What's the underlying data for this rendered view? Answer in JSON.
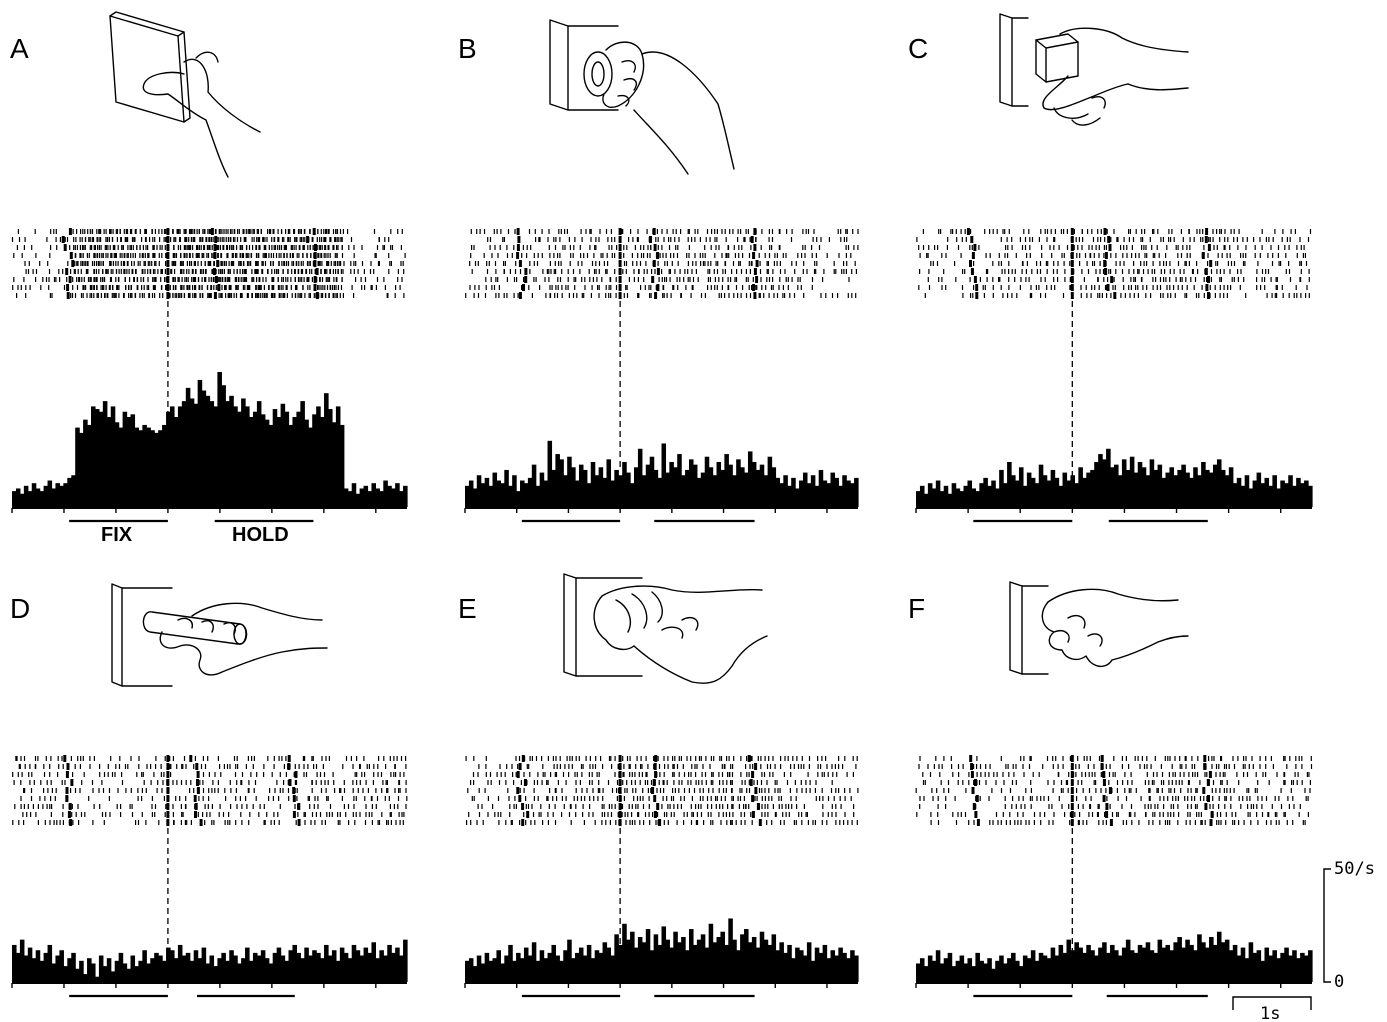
{
  "figure": {
    "panels": [
      {
        "label": "A",
        "object": "flat plate",
        "bar_height_scale": 1.0,
        "epoch_labels": {
          "fix": "FIX",
          "hold": "HOLD"
        }
      },
      {
        "label": "B",
        "object": "ring",
        "bar_height_scale": 0.45
      },
      {
        "label": "C",
        "object": "cube in groove",
        "bar_height_scale": 0.45
      },
      {
        "label": "D",
        "object": "cylinder",
        "bar_height_scale": 0.35
      },
      {
        "label": "E",
        "object": "large cylinder",
        "bar_height_scale": 0.45
      },
      {
        "label": "F",
        "object": "small cone",
        "bar_height_scale": 0.35
      }
    ],
    "calibration": {
      "rate_label": "50/s",
      "zero_label": "0",
      "time_label": "1s"
    }
  },
  "chart_data": [
    {
      "type": "bar",
      "panel": "A",
      "title": "",
      "xlabel": "",
      "ylabel": "",
      "units_y": "spikes/s",
      "bin_width_s": 0.05,
      "x_range_s": [
        -1.5,
        2.3
      ],
      "ylim": [
        0,
        50
      ],
      "alignment_event_s": 0,
      "epochs": [
        {
          "name": "FIX",
          "start_s": -0.95,
          "end_s": 0
        },
        {
          "name": "HOLD",
          "start_s": 0.45,
          "end_s": 1.4
        }
      ],
      "values": [
        6,
        7,
        5,
        8,
        6,
        9,
        7,
        6,
        8,
        10,
        7,
        9,
        8,
        9,
        11,
        12,
        30,
        28,
        33,
        31,
        38,
        37,
        36,
        40,
        34,
        38,
        32,
        30,
        36,
        34,
        35,
        30,
        29,
        31,
        30,
        29,
        28,
        29,
        31,
        36,
        38,
        34,
        38,
        40,
        45,
        41,
        39,
        48,
        44,
        42,
        40,
        38,
        51,
        46,
        40,
        42,
        38,
        36,
        41,
        38,
        34,
        36,
        40,
        35,
        33,
        31,
        37,
        34,
        39,
        36,
        31,
        34,
        36,
        40,
        33,
        30,
        35,
        38,
        34,
        43,
        37,
        32,
        38,
        31,
        7,
        6,
        9,
        5,
        7,
        8,
        6,
        9,
        7,
        6,
        10,
        8,
        7,
        9,
        6,
        8
      ],
      "raster_trials": 9
    },
    {
      "type": "bar",
      "panel": "B",
      "title": "",
      "xlabel": "",
      "ylabel": "",
      "units_y": "spikes/s",
      "bin_width_s": 0.05,
      "x_range_s": [
        -1.5,
        2.3
      ],
      "ylim": [
        0,
        50
      ],
      "alignment_event_s": 0,
      "epochs": [
        {
          "name": "FIX",
          "start_s": -0.95,
          "end_s": 0
        },
        {
          "name": "HOLD",
          "start_s": 0.33,
          "end_s": 1.3
        }
      ],
      "values": [
        8,
        10,
        7,
        12,
        9,
        11,
        8,
        13,
        10,
        9,
        14,
        8,
        12,
        6,
        10,
        9,
        11,
        16,
        8,
        13,
        10,
        25,
        14,
        20,
        18,
        12,
        19,
        15,
        10,
        16,
        14,
        9,
        17,
        12,
        15,
        11,
        18,
        10,
        14,
        12,
        17,
        13,
        9,
        15,
        22,
        12,
        16,
        19,
        14,
        11,
        24,
        13,
        17,
        15,
        20,
        12,
        14,
        18,
        16,
        11,
        13,
        19,
        15,
        12,
        17,
        14,
        20,
        16,
        12,
        18,
        15,
        13,
        21,
        17,
        14,
        16,
        12,
        19,
        15,
        11,
        9,
        12,
        8,
        11,
        7,
        10,
        13,
        9,
        12,
        8,
        14,
        10,
        9,
        13,
        11,
        8,
        12,
        10,
        9,
        11
      ],
      "raster_trials": 9
    },
    {
      "type": "bar",
      "panel": "C",
      "title": "",
      "xlabel": "",
      "ylabel": "",
      "units_y": "spikes/s",
      "bin_width_s": 0.05,
      "x_range_s": [
        -1.5,
        2.3
      ],
      "ylim": [
        0,
        50
      ],
      "alignment_event_s": 0,
      "epochs": [
        {
          "name": "FIX",
          "start_s": -0.95,
          "end_s": 0
        },
        {
          "name": "HOLD",
          "start_s": 0.35,
          "end_s": 1.3
        }
      ],
      "values": [
        6,
        8,
        5,
        9,
        7,
        10,
        6,
        8,
        5,
        9,
        7,
        6,
        8,
        10,
        7,
        6,
        9,
        11,
        8,
        10,
        7,
        14,
        9,
        17,
        12,
        10,
        15,
        8,
        13,
        11,
        9,
        16,
        12,
        10,
        14,
        11,
        8,
        13,
        10,
        12,
        9,
        15,
        11,
        13,
        14,
        17,
        20,
        18,
        22,
        15,
        16,
        12,
        18,
        14,
        19,
        13,
        17,
        15,
        12,
        18,
        14,
        16,
        11,
        13,
        15,
        12,
        14,
        16,
        13,
        11,
        15,
        12,
        17,
        14,
        13,
        16,
        18,
        14,
        12,
        15,
        9,
        11,
        8,
        12,
        7,
        10,
        13,
        9,
        11,
        8,
        12,
        7,
        10,
        9,
        12,
        8,
        11,
        9,
        10,
        8
      ],
      "raster_trials": 9
    },
    {
      "type": "bar",
      "panel": "D",
      "title": "",
      "xlabel": "",
      "ylabel": "",
      "units_y": "spikes/s",
      "bin_width_s": 0.05,
      "x_range_s": [
        -1.5,
        2.3
      ],
      "ylim": [
        0,
        50
      ],
      "alignment_event_s": 0,
      "epochs": [
        {
          "name": "FIX",
          "start_s": -0.95,
          "end_s": 0
        },
        {
          "name": "HOLD",
          "start_s": 0.28,
          "end_s": 1.22
        }
      ],
      "values": [
        14,
        11,
        16,
        10,
        13,
        9,
        12,
        8,
        11,
        14,
        7,
        10,
        12,
        6,
        9,
        11,
        5,
        8,
        3,
        9,
        7,
        2,
        10,
        6,
        9,
        4,
        8,
        11,
        7,
        5,
        10,
        6,
        8,
        12,
        7,
        9,
        11,
        10,
        8,
        13,
        12,
        9,
        14,
        10,
        11,
        8,
        12,
        9,
        13,
        7,
        10,
        6,
        9,
        11,
        8,
        12,
        10,
        7,
        9,
        13,
        8,
        11,
        10,
        12,
        9,
        7,
        11,
        13,
        10,
        8,
        12,
        14,
        11,
        9,
        13,
        10,
        12,
        11,
        9,
        14,
        10,
        12,
        8,
        13,
        11,
        9,
        14,
        12,
        10,
        13,
        11,
        15,
        9,
        12,
        10,
        14,
        11,
        13,
        10,
        16
      ],
      "raster_trials": 9
    },
    {
      "type": "bar",
      "panel": "E",
      "title": "",
      "xlabel": "",
      "ylabel": "",
      "units_y": "spikes/s",
      "bin_width_s": 0.05,
      "x_range_s": [
        -1.5,
        2.3
      ],
      "ylim": [
        0,
        50
      ],
      "alignment_event_s": 0,
      "epochs": [
        {
          "name": "FIX",
          "start_s": -0.95,
          "end_s": 0
        },
        {
          "name": "HOLD",
          "start_s": 0.33,
          "end_s": 1.3
        }
      ],
      "values": [
        8,
        9,
        6,
        10,
        7,
        11,
        8,
        9,
        12,
        7,
        10,
        14,
        8,
        11,
        9,
        13,
        10,
        15,
        8,
        12,
        9,
        11,
        14,
        10,
        8,
        12,
        16,
        9,
        11,
        13,
        10,
        14,
        9,
        12,
        11,
        15,
        13,
        10,
        18,
        14,
        22,
        16,
        19,
        13,
        17,
        15,
        20,
        12,
        18,
        14,
        21,
        16,
        13,
        19,
        15,
        17,
        12,
        20,
        14,
        16,
        18,
        13,
        22,
        15,
        17,
        19,
        14,
        24,
        16,
        12,
        18,
        20,
        15,
        17,
        13,
        19,
        16,
        14,
        18,
        12,
        15,
        11,
        14,
        9,
        13,
        12,
        10,
        15,
        8,
        13,
        11,
        14,
        9,
        12,
        10,
        13,
        11,
        9,
        12,
        10
      ],
      "raster_trials": 9
    },
    {
      "type": "bar",
      "panel": "F",
      "title": "",
      "xlabel": "",
      "ylabel": "",
      "units_y": "spikes/s",
      "bin_width_s": 0.05,
      "x_range_s": [
        -1.5,
        2.3
      ],
      "ylim": [
        0,
        50
      ],
      "alignment_event_s": 0,
      "epochs": [
        {
          "name": "FIX",
          "start_s": -0.95,
          "end_s": 0
        },
        {
          "name": "HOLD",
          "start_s": 0.33,
          "end_s": 1.3
        }
      ],
      "values": [
        7,
        9,
        6,
        10,
        8,
        12,
        7,
        9,
        11,
        6,
        8,
        10,
        7,
        9,
        6,
        11,
        8,
        7,
        9,
        5,
        8,
        10,
        7,
        9,
        11,
        8,
        6,
        10,
        9,
        12,
        8,
        11,
        10,
        9,
        13,
        10,
        14,
        11,
        16,
        12,
        15,
        13,
        11,
        14,
        12,
        10,
        13,
        15,
        11,
        14,
        12,
        10,
        13,
        16,
        12,
        11,
        14,
        13,
        15,
        12,
        11,
        16,
        13,
        14,
        12,
        15,
        17,
        13,
        16,
        14,
        12,
        18,
        15,
        13,
        17,
        14,
        19,
        15,
        16,
        12,
        14,
        10,
        13,
        9,
        15,
        11,
        12,
        8,
        13,
        10,
        12,
        9,
        11,
        13,
        10,
        12,
        9,
        11,
        10,
        12
      ],
      "raster_trials": 9
    }
  ]
}
